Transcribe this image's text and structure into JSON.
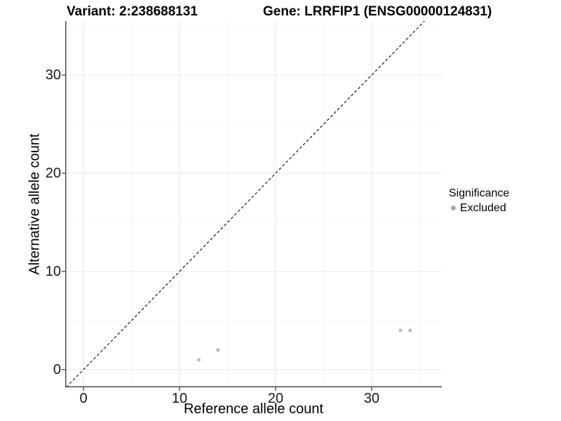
{
  "header": {
    "variant_title": "Variant: 2:238688131",
    "gene_title": "Gene: LRRFIP1 (ENSG00000124831)"
  },
  "legend": {
    "title": "Significance",
    "items": [
      {
        "label": "Excluded",
        "color": "#a8a8a8"
      }
    ]
  },
  "chart_data": {
    "type": "scatter",
    "title": "Variant: 2:238688131   Gene: LRRFIP1 (ENSG00000124831)",
    "xlabel": "Reference allele count",
    "ylabel": "Alternative allele count",
    "xlim": [
      -1.9,
      37.3
    ],
    "ylim": [
      -1.8,
      35.5
    ],
    "x_major_ticks": [
      0,
      10,
      20,
      30
    ],
    "x_minor_ticks": [
      5,
      15,
      25,
      35
    ],
    "y_major_ticks": [
      0,
      10,
      20,
      30
    ],
    "y_minor_ticks": [
      5,
      15,
      25,
      35
    ],
    "grid": true,
    "legend_position": "right",
    "identity_line": {
      "style": "dashed",
      "slope": 1,
      "intercept": 0,
      "color": "#1a1a1a"
    },
    "series": [
      {
        "name": "Excluded",
        "color": "#bdbdbd",
        "points": [
          [
            12,
            1
          ],
          [
            14,
            2
          ],
          [
            33,
            4
          ],
          [
            34,
            4
          ]
        ]
      }
    ]
  },
  "colors": {
    "background": "#ffffff",
    "axis_line": "#4d4d4d",
    "tick_mark": "#333333",
    "grid_major": "#e9e9e9",
    "grid_minor": "#f4f4f4"
  }
}
